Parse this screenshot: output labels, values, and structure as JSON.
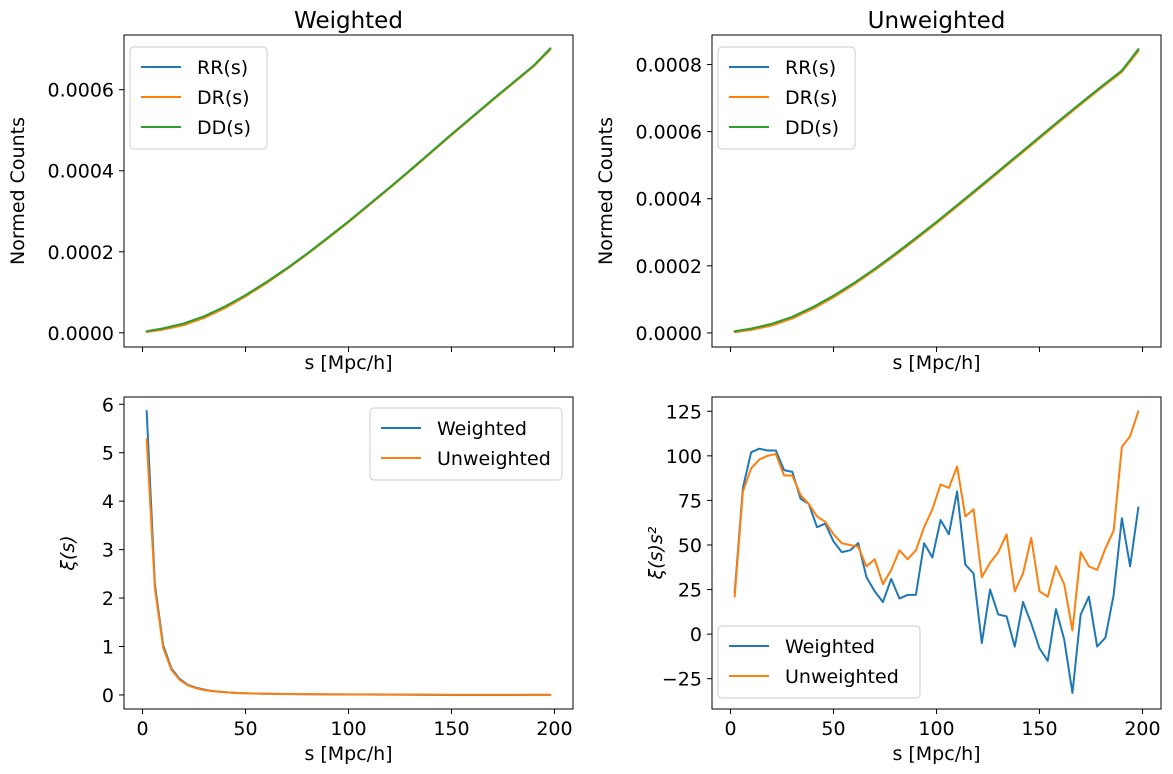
{
  "colors": {
    "blue": "#1f77b4",
    "orange": "#ff7f0e",
    "green": "#2ca02c"
  },
  "chart_data": [
    {
      "type": "line",
      "title": "Weighted",
      "xlabel": "s [Mpc/h]",
      "ylabel": "Normed Counts",
      "xlim": [
        -9,
        209
      ],
      "ylim": [
        -3.5e-05,
        0.000735
      ],
      "xticks": [
        0,
        50,
        100,
        150,
        200
      ],
      "show_xticklabels": false,
      "yticks": [
        0,
        0.0002,
        0.0004,
        0.0006
      ],
      "ytick_labels": [
        "0.0000",
        "0.0002",
        "0.0004",
        "0.0006"
      ],
      "grid": false,
      "legend": "top-left",
      "series": [
        {
          "name": "RR(s)",
          "color": "#1f77b4",
          "x": [
            2,
            10,
            20,
            30,
            40,
            50,
            60,
            70,
            80,
            90,
            100,
            110,
            120,
            130,
            140,
            150,
            160,
            170,
            180,
            190,
            198
          ],
          "y": [
            3e-06,
            1e-05,
            2.2e-05,
            4e-05,
            6.4e-05,
            9.2e-05,
            0.000124,
            0.000158,
            0.000195,
            0.000234,
            0.000274,
            0.000316,
            0.000358,
            0.000401,
            0.000445,
            0.000489,
            0.000532,
            0.000575,
            0.000617,
            0.000659,
            0.0007
          ]
        },
        {
          "name": "DR(s)",
          "color": "#ff7f0e",
          "x": [
            2,
            10,
            20,
            30,
            40,
            50,
            60,
            70,
            80,
            90,
            100,
            110,
            120,
            130,
            140,
            150,
            160,
            170,
            180,
            190,
            198
          ],
          "y": [
            2e-06,
            8e-06,
            1.9e-05,
            3.7e-05,
            6.1e-05,
            9e-05,
            0.000122,
            0.000157,
            0.000194,
            0.000233,
            0.000273,
            0.000315,
            0.000357,
            0.0004,
            0.000444,
            0.000488,
            0.000531,
            0.000574,
            0.000616,
            0.000658,
            0.000699
          ]
        },
        {
          "name": "DD(s)",
          "color": "#2ca02c",
          "x": [
            2,
            10,
            20,
            30,
            40,
            50,
            60,
            70,
            80,
            90,
            100,
            110,
            120,
            130,
            140,
            150,
            160,
            170,
            180,
            190,
            198
          ],
          "y": [
            4e-06,
            1.1e-05,
            2.3e-05,
            4.1e-05,
            6.5e-05,
            9.3e-05,
            0.000125,
            0.000159,
            0.000196,
            0.000235,
            0.000275,
            0.000317,
            0.000359,
            0.000402,
            0.000446,
            0.00049,
            0.000533,
            0.000576,
            0.000618,
            0.00066,
            0.000702
          ]
        }
      ]
    },
    {
      "type": "line",
      "title": "Unweighted",
      "xlabel": "s [Mpc/h]",
      "ylabel": "Normed Counts",
      "xlim": [
        -9,
        209
      ],
      "ylim": [
        -4.2e-05,
        0.000888
      ],
      "xticks": [
        0,
        50,
        100,
        150,
        200
      ],
      "show_xticklabels": false,
      "yticks": [
        0,
        0.0002,
        0.0004,
        0.0006,
        0.0008
      ],
      "ytick_labels": [
        "0.0000",
        "0.0002",
        "0.0004",
        "0.0006",
        "0.0008"
      ],
      "grid": false,
      "legend": "top-left",
      "series": [
        {
          "name": "RR(s)",
          "color": "#1f77b4",
          "x": [
            2,
            10,
            20,
            30,
            40,
            50,
            60,
            70,
            80,
            90,
            100,
            110,
            120,
            130,
            140,
            150,
            160,
            170,
            180,
            190,
            198
          ],
          "y": [
            4e-06,
            1.2e-05,
            2.6e-05,
            4.7e-05,
            7.6e-05,
            0.00011,
            0.000148,
            0.00019,
            0.000235,
            0.000282,
            0.00033,
            0.00038,
            0.00043,
            0.000481,
            0.000532,
            0.000583,
            0.000634,
            0.000684,
            0.000733,
            0.00078,
            0.000843
          ]
        },
        {
          "name": "DR(s)",
          "color": "#ff7f0e",
          "x": [
            2,
            10,
            20,
            30,
            40,
            50,
            60,
            70,
            80,
            90,
            100,
            110,
            120,
            130,
            140,
            150,
            160,
            170,
            180,
            190,
            198
          ],
          "y": [
            2e-06,
            9e-06,
            2.2e-05,
            4.3e-05,
            7.2e-05,
            0.000106,
            0.000145,
            0.000187,
            0.000232,
            0.000279,
            0.000327,
            0.000377,
            0.000427,
            0.000478,
            0.000529,
            0.00058,
            0.000631,
            0.000681,
            0.00073,
            0.000778,
            0.00084
          ]
        },
        {
          "name": "DD(s)",
          "color": "#2ca02c",
          "x": [
            2,
            10,
            20,
            30,
            40,
            50,
            60,
            70,
            80,
            90,
            100,
            110,
            120,
            130,
            140,
            150,
            160,
            170,
            180,
            190,
            198
          ],
          "y": [
            5e-06,
            1.3e-05,
            2.7e-05,
            4.8e-05,
            7.7e-05,
            0.000111,
            0.000149,
            0.000191,
            0.000236,
            0.000283,
            0.000331,
            0.000381,
            0.000431,
            0.000482,
            0.000533,
            0.000584,
            0.000635,
            0.000685,
            0.000734,
            0.000782,
            0.000846
          ]
        }
      ]
    },
    {
      "type": "line",
      "title": "",
      "xlabel": "s [Mpc/h]",
      "ylabel": "ξ(s)",
      "xlim": [
        -9,
        209
      ],
      "ylim": [
        -0.29,
        6.15
      ],
      "xticks": [
        0,
        50,
        100,
        150,
        200
      ],
      "show_xticklabels": true,
      "xtick_labels": [
        "0",
        "50",
        "100",
        "150",
        "200"
      ],
      "yticks": [
        0,
        1,
        2,
        3,
        4,
        5,
        6
      ],
      "ytick_labels": [
        "0",
        "1",
        "2",
        "3",
        "4",
        "5",
        "6"
      ],
      "grid": false,
      "legend": "top-right",
      "series": [
        {
          "name": "Weighted",
          "color": "#1f77b4",
          "x": [
            2,
            6,
            10,
            14,
            18,
            22,
            26,
            30,
            34,
            38,
            42,
            46,
            50,
            60,
            70,
            80,
            90,
            100,
            110,
            120,
            130,
            140,
            150,
            160,
            170,
            180,
            190,
            198
          ],
          "y": [
            5.86,
            2.28,
            1.03,
            0.55,
            0.33,
            0.21,
            0.15,
            0.11,
            0.08,
            0.065,
            0.05,
            0.04,
            0.035,
            0.025,
            0.02,
            0.015,
            0.012,
            0.01,
            0.008,
            0.006,
            0.004,
            0.002,
            0.0,
            -0.001,
            0.0,
            0.0,
            0.002,
            0.002
          ]
        },
        {
          "name": "Unweighted",
          "color": "#ff7f0e",
          "x": [
            2,
            6,
            10,
            14,
            18,
            22,
            26,
            30,
            34,
            38,
            42,
            46,
            50,
            60,
            70,
            80,
            90,
            100,
            110,
            120,
            130,
            140,
            150,
            160,
            170,
            180,
            190,
            198
          ],
          "y": [
            5.28,
            2.2,
            0.98,
            0.52,
            0.31,
            0.2,
            0.14,
            0.1,
            0.08,
            0.06,
            0.05,
            0.04,
            0.032,
            0.025,
            0.02,
            0.017,
            0.015,
            0.013,
            0.012,
            0.01,
            0.008,
            0.006,
            0.005,
            0.004,
            0.004,
            0.004,
            0.004,
            0.004
          ]
        }
      ]
    },
    {
      "type": "line",
      "title": "",
      "xlabel": "s [Mpc/h]",
      "ylabel": "ξ(s)s²",
      "xlim": [
        -9,
        209
      ],
      "ylim": [
        -42,
        133
      ],
      "xticks": [
        0,
        50,
        100,
        150,
        200
      ],
      "show_xticklabels": true,
      "xtick_labels": [
        "0",
        "50",
        "100",
        "150",
        "200"
      ],
      "yticks": [
        -25,
        0,
        25,
        50,
        75,
        100,
        125
      ],
      "ytick_labels": [
        "−25",
        "0",
        "25",
        "50",
        "75",
        "100",
        "125"
      ],
      "grid": false,
      "legend": "bottom-left",
      "series": [
        {
          "name": "Weighted",
          "color": "#1f77b4",
          "x": [
            2,
            6,
            10,
            14,
            18,
            22,
            26,
            30,
            34,
            38,
            42,
            46,
            50,
            54,
            58,
            62,
            66,
            70,
            74,
            78,
            82,
            86,
            90,
            94,
            98,
            102,
            106,
            110,
            114,
            118,
            122,
            126,
            130,
            134,
            138,
            142,
            146,
            150,
            154,
            158,
            162,
            166,
            170,
            174,
            178,
            182,
            186,
            190,
            194,
            198
          ],
          "y": [
            23,
            82,
            102,
            104,
            103,
            103,
            92,
            91,
            76,
            73,
            60,
            62,
            52,
            46,
            47,
            51,
            32,
            24,
            18,
            31,
            20,
            22,
            22,
            51,
            43,
            64,
            56,
            80,
            39,
            34,
            -5,
            25,
            11,
            10,
            -7,
            18,
            6,
            -8,
            -15,
            14,
            -3,
            -33,
            11,
            21,
            -7,
            -2,
            22,
            65,
            38,
            71
          ]
        },
        {
          "name": "Unweighted",
          "color": "#ff7f0e",
          "x": [
            2,
            6,
            10,
            14,
            18,
            22,
            26,
            30,
            34,
            38,
            42,
            46,
            50,
            54,
            58,
            62,
            66,
            70,
            74,
            78,
            82,
            86,
            90,
            94,
            98,
            102,
            106,
            110,
            114,
            118,
            122,
            126,
            130,
            134,
            138,
            142,
            146,
            150,
            154,
            158,
            162,
            166,
            170,
            174,
            178,
            182,
            186,
            190,
            194,
            198
          ],
          "y": [
            21,
            80,
            93,
            98,
            100,
            101,
            89,
            89,
            78,
            73,
            66,
            63,
            56,
            51,
            50,
            49,
            38,
            42,
            28,
            36,
            47,
            42,
            47,
            60,
            70,
            84,
            82,
            94,
            66,
            70,
            32,
            40,
            46,
            56,
            24,
            34,
            54,
            24,
            21,
            38,
            28,
            2,
            46,
            38,
            36,
            48,
            58,
            105,
            111,
            125
          ]
        }
      ]
    }
  ]
}
